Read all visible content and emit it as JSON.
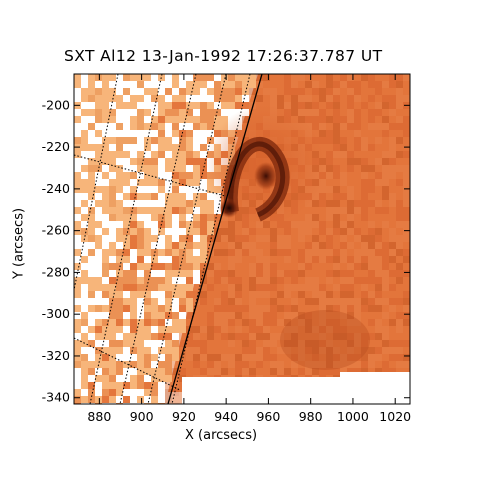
{
  "image": {
    "title": "SXT Al12 13-Jan-1992 17:26:37.787 UT",
    "xlabel": "X (arcsecs)",
    "ylabel": "Y (arcsecs)",
    "x_ticks": [
      "880",
      "900",
      "920",
      "940",
      "960",
      "980",
      "1000",
      "1020"
    ],
    "y_ticks": [
      "-200",
      "-220",
      "-240",
      "-260",
      "-280",
      "-300",
      "-320",
      "-340"
    ],
    "x_range": [
      868,
      1027
    ],
    "y_range": [
      -343,
      -185
    ],
    "colormap": [
      "#ffffff",
      "#f7b57a",
      "#e4763c",
      "#c75a25",
      "#8a2d0e",
      "#1a0503"
    ],
    "features": [
      "solar-limb-line",
      "coordinate-grid-lines",
      "bright-loop-kernel",
      "dark-footpoint"
    ]
  }
}
